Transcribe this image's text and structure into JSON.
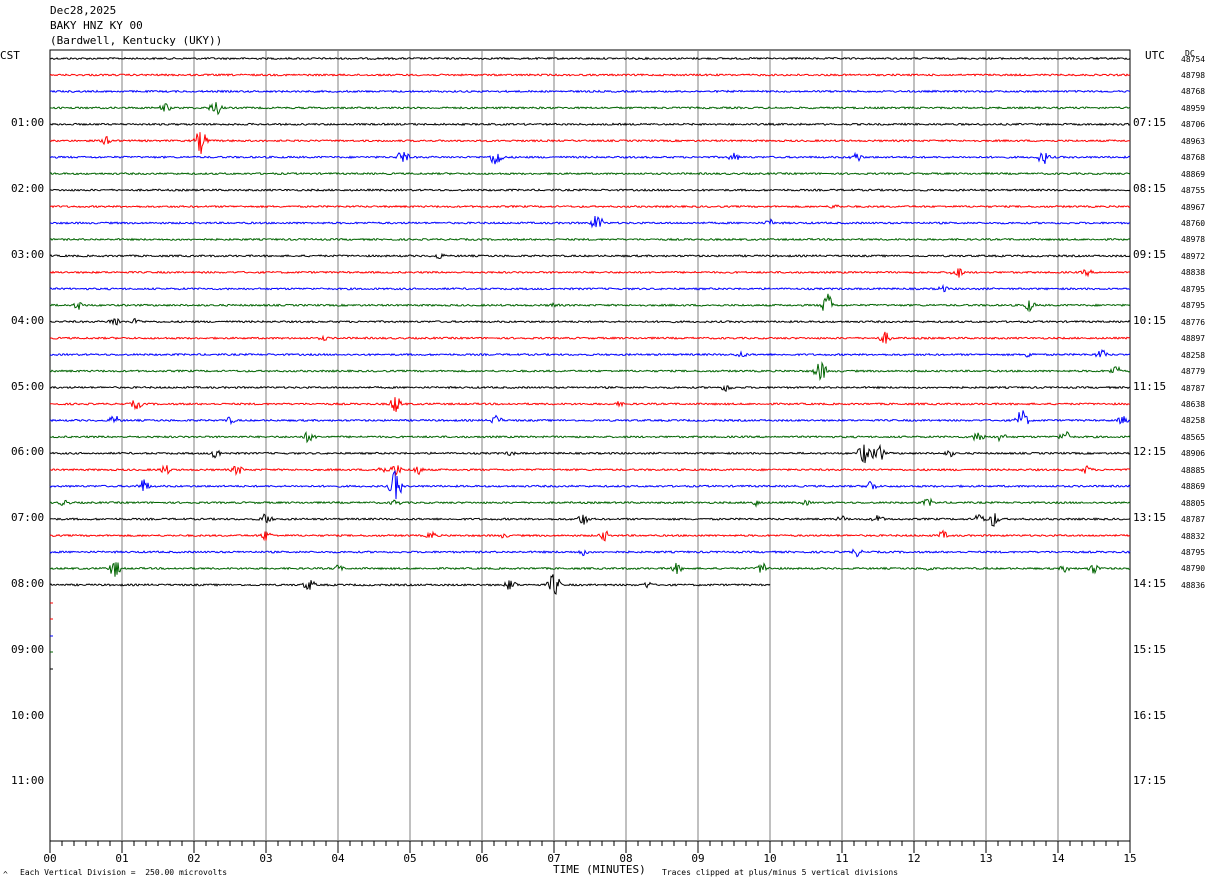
{
  "header": {
    "date": "Dec28,2025",
    "station": "BAKY HNZ KY 00",
    "location": "(Bardwell, Kentucky (UKY))"
  },
  "labels": {
    "left_tz": "CST",
    "right_tz": "UTC",
    "dc": "DC"
  },
  "left_hours": [
    "01:00",
    "02:00",
    "03:00",
    "04:00",
    "05:00",
    "06:00",
    "07:00",
    "08:00",
    "09:00",
    "10:00",
    "11:00"
  ],
  "right_hours": [
    "07:15",
    "08:15",
    "09:15",
    "10:15",
    "11:15",
    "12:15",
    "13:15",
    "14:15",
    "15:15",
    "16:15",
    "17:15"
  ],
  "dc_values": [
    "48754",
    "48798",
    "48768",
    "48959",
    "48706",
    "48963",
    "48768",
    "48869",
    "48755",
    "48967",
    "48760",
    "48978",
    "48972",
    "48838",
    "48795",
    "48795",
    "48776",
    "48897",
    "48258",
    "48779",
    "48787",
    "48638",
    "48258",
    "48565",
    "48906",
    "48885",
    "48869",
    "48805",
    "48787",
    "48832",
    "48795",
    "48790",
    "48836"
  ],
  "footer": {
    "scale": "Each Vertical Division =  250.00 microvolts",
    "xlabel": "TIME (MINUTES)",
    "clip_note": "Traces clipped at plus/minus 5 vertical divisions"
  },
  "chart_data": {
    "type": "line",
    "title": "BAKY HNZ KY 00",
    "xlabel": "TIME (MINUTES)",
    "xlim": [
      0,
      15
    ],
    "x_ticks": [
      "00",
      "01",
      "02",
      "03",
      "04",
      "05",
      "06",
      "07",
      "08",
      "09",
      "10",
      "11",
      "12",
      "13",
      "14",
      "15"
    ],
    "trace_interval_minutes": 15,
    "trace_colors": [
      "#000000",
      "#ff0000",
      "#0000ff",
      "#006400"
    ],
    "traces_drawn": 33,
    "last_trace_end_minute": 10,
    "grid": true
  }
}
